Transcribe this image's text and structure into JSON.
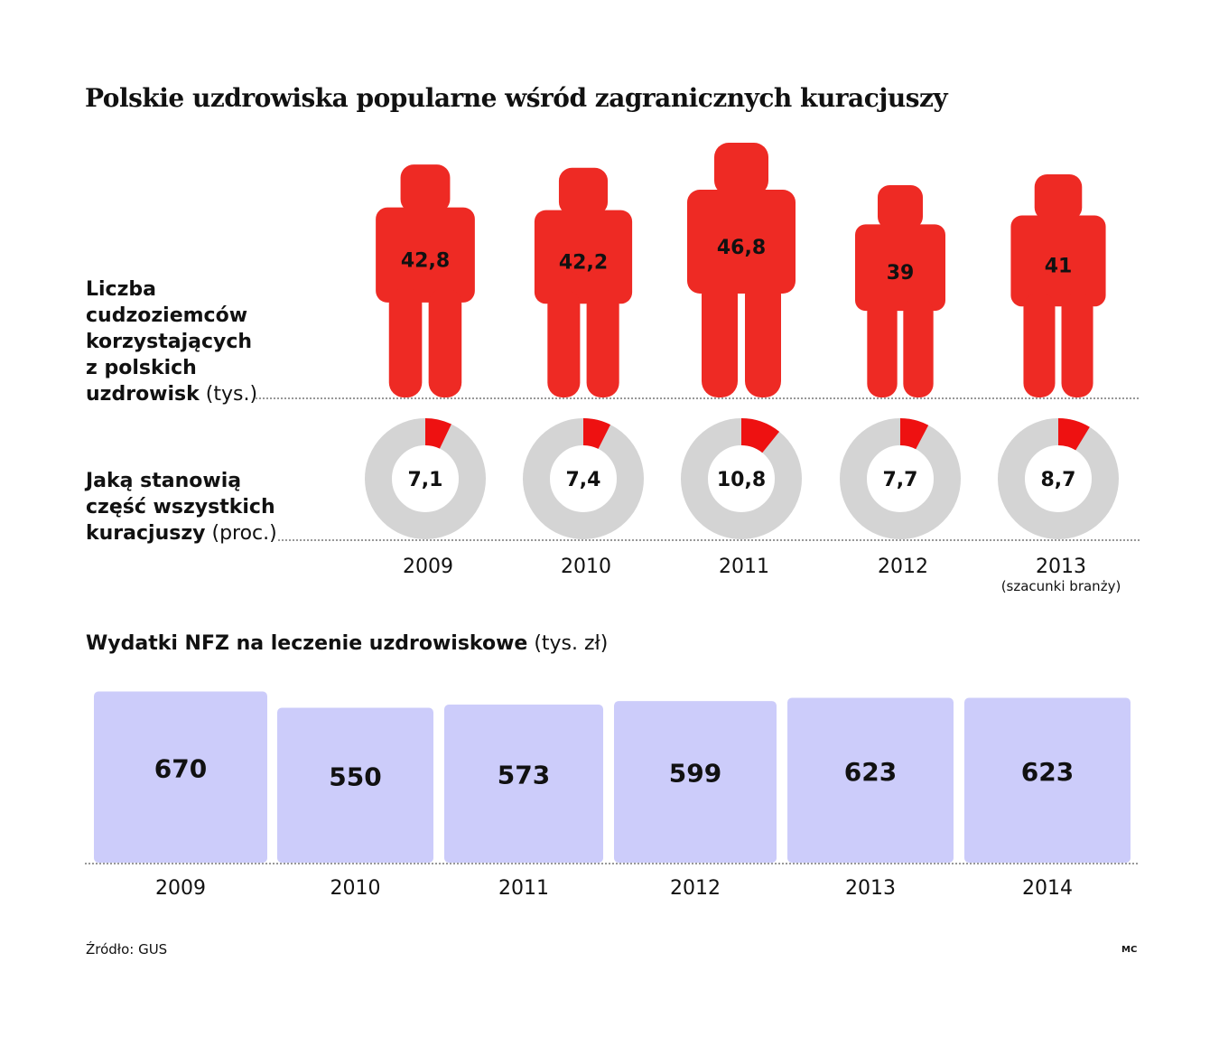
{
  "title": "Polskie uzdrowiska popularne wśród zagranicznych kuracjuszy",
  "source": "Źródło: GUS",
  "author": "MC",
  "chart_data": [
    {
      "type": "pictogram",
      "label_bold": "Liczba cudzoziemców korzystających z polskich uzdrowisk",
      "label_bold_lines": [
        "Liczba",
        "cudzoziemców",
        "korzystających",
        "z polskich",
        "uzdrowisk"
      ],
      "unit": "(tys.)",
      "categories": [
        "2009",
        "2010",
        "2011",
        "2012",
        "2013"
      ],
      "values": [
        42.8,
        42.2,
        46.8,
        39,
        41
      ],
      "value_labels": [
        "42,8",
        "42,2",
        "46,8",
        "39",
        "41"
      ],
      "color": "#ee2a24"
    },
    {
      "type": "donut",
      "label_bold_lines": [
        "Jaką stanowią",
        "część wszystkich",
        "kuracjuszy"
      ],
      "unit": "(proc.)",
      "categories": [
        "2009",
        "2010",
        "2011",
        "2012",
        "2013"
      ],
      "category_notes": [
        "",
        "",
        "",
        "",
        "(szacunki branży)"
      ],
      "values": [
        7.1,
        7.4,
        10.8,
        7.7,
        8.7
      ],
      "value_labels": [
        "7,1",
        "7,4",
        "10,8",
        "7,7",
        "8,7"
      ],
      "color": "#ee1111",
      "rest_color": "#d4d4d4"
    },
    {
      "type": "bar",
      "title_bold": "Wydatki NFZ na leczenie uzdrowiskowe",
      "unit": "(tys. zł)",
      "categories": [
        "2009",
        "2010",
        "2011",
        "2012",
        "2013",
        "2014"
      ],
      "values": [
        670,
        550,
        573,
        599,
        623,
        623
      ],
      "value_labels": [
        "670",
        "550",
        "573",
        "599",
        "623",
        "623"
      ],
      "color": "#ccccfa"
    }
  ]
}
